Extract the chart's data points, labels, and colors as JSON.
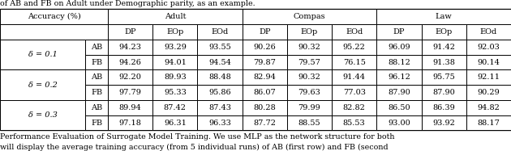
{
  "title_text": "of AB and FB on Adult under Demographic parity, as an example.",
  "caption": "Performance Evaluation of Surrogate Model Training. We use MLP as the network structure for both",
  "caption2": "will display the average training accuracy (from 5 individual runs) of AB (first row) and FB (second",
  "row_groups": [
    {
      "delta": "= 0.1",
      "rows": [
        {
          "label": "AB",
          "values": [
            94.23,
            93.29,
            93.55,
            90.26,
            90.32,
            95.22,
            96.09,
            91.42,
            92.03
          ]
        },
        {
          "label": "FB",
          "values": [
            94.26,
            94.01,
            94.54,
            79.87,
            79.57,
            76.15,
            88.12,
            91.38,
            90.14
          ]
        }
      ]
    },
    {
      "delta": "= 0.2",
      "rows": [
        {
          "label": "AB",
          "values": [
            92.2,
            89.93,
            88.48,
            82.94,
            90.32,
            91.44,
            96.12,
            95.75,
            92.11
          ]
        },
        {
          "label": "FB",
          "values": [
            97.79,
            95.33,
            95.86,
            86.07,
            79.63,
            77.03,
            87.9,
            87.9,
            90.29
          ]
        }
      ]
    },
    {
      "delta": "= 0.3",
      "rows": [
        {
          "label": "AB",
          "values": [
            89.94,
            87.42,
            87.43,
            80.28,
            79.99,
            82.82,
            86.5,
            86.39,
            94.82
          ]
        },
        {
          "label": "FB",
          "values": [
            97.18,
            96.31,
            96.33,
            87.72,
            88.55,
            85.53,
            93.0,
            93.92,
            88.17
          ]
        }
      ]
    }
  ],
  "col_groups": [
    "Adult",
    "Compas",
    "Law"
  ],
  "sub_cols": [
    "DP",
    "EOp",
    "EOd"
  ],
  "row_label_col": "Accuracy (%)",
  "font_size": 7.0,
  "caption_font_size": 6.8
}
